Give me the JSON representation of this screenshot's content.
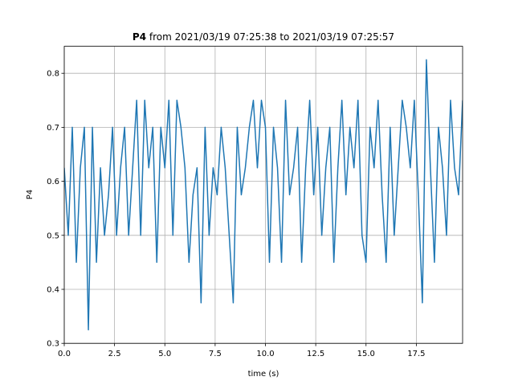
{
  "chart_data": {
    "type": "line",
    "title": {
      "name": "P4",
      "text": "from 2021/03/19 07:25:38 to 2021/03/19 07:25:57"
    },
    "xlabel": "time (s)",
    "ylabel": "P4",
    "x": [
      0,
      0.2,
      0.4,
      0.6,
      0.8,
      1,
      1.2,
      1.4,
      1.6,
      1.8,
      2,
      2.2,
      2.4,
      2.6,
      2.8,
      3,
      3.2,
      3.4,
      3.6,
      3.8,
      4,
      4.2,
      4.4,
      4.6,
      4.8,
      5,
      5.2,
      5.4,
      5.6,
      5.8,
      6,
      6.2,
      6.4,
      6.6,
      6.8,
      7,
      7.2,
      7.4,
      7.6,
      7.8,
      8,
      8.2,
      8.4,
      8.6,
      8.8,
      9,
      9.2,
      9.4,
      9.6,
      9.8,
      10,
      10.2,
      10.4,
      10.6,
      10.8,
      11,
      11.2,
      11.4,
      11.6,
      11.8,
      12,
      12.2,
      12.4,
      12.6,
      12.8,
      13,
      13.2,
      13.4,
      13.6,
      13.8,
      14,
      14.2,
      14.4,
      14.6,
      14.8,
      15,
      15.2,
      15.4,
      15.6,
      15.8,
      16,
      16.2,
      16.4,
      16.6,
      16.8,
      17,
      17.2,
      17.4,
      17.6,
      17.8,
      18,
      18.2,
      18.4,
      18.6,
      18.8,
      19,
      19.2,
      19.4,
      19.6,
      19.8
    ],
    "series": [
      {
        "name": "P4",
        "color": "#1f77b4",
        "values": [
          0.625,
          0.5,
          0.7,
          0.45,
          0.625,
          0.7,
          0.325,
          0.7,
          0.45,
          0.625,
          0.5,
          0.575,
          0.7,
          0.5,
          0.625,
          0.7,
          0.5,
          0.625,
          0.75,
          0.5,
          0.75,
          0.625,
          0.7,
          0.45,
          0.7,
          0.625,
          0.75,
          0.5,
          0.75,
          0.7,
          0.625,
          0.45,
          0.575,
          0.625,
          0.375,
          0.7,
          0.5,
          0.625,
          0.575,
          0.7,
          0.625,
          0.5,
          0.375,
          0.7,
          0.575,
          0.625,
          0.7,
          0.75,
          0.625,
          0.75,
          0.7,
          0.45,
          0.7,
          0.625,
          0.45,
          0.75,
          0.575,
          0.625,
          0.7,
          0.45,
          0.625,
          0.75,
          0.575,
          0.7,
          0.5,
          0.625,
          0.7,
          0.45,
          0.625,
          0.75,
          0.575,
          0.7,
          0.625,
          0.75,
          0.5,
          0.45,
          0.7,
          0.625,
          0.75,
          0.575,
          0.45,
          0.7,
          0.5,
          0.625,
          0.75,
          0.7,
          0.625,
          0.75,
          0.575,
          0.375,
          0.825,
          0.625,
          0.45,
          0.7,
          0.625,
          0.5,
          0.75,
          0.625,
          0.575,
          0.75
        ]
      }
    ],
    "xlim": [
      0,
      19.8
    ],
    "ylim": [
      0.3,
      0.85
    ],
    "xticks": [
      {
        "value": 0,
        "label": "0.0"
      },
      2.5,
      {
        "value": 5,
        "label": "5.0"
      },
      7.5,
      {
        "value": 10,
        "label": "10.0"
      },
      12.5,
      {
        "value": 15,
        "label": "15.0"
      },
      17.5
    ],
    "yticks": [
      0.3,
      0.4,
      0.5,
      0.6,
      0.7,
      0.8
    ],
    "grid": true
  }
}
